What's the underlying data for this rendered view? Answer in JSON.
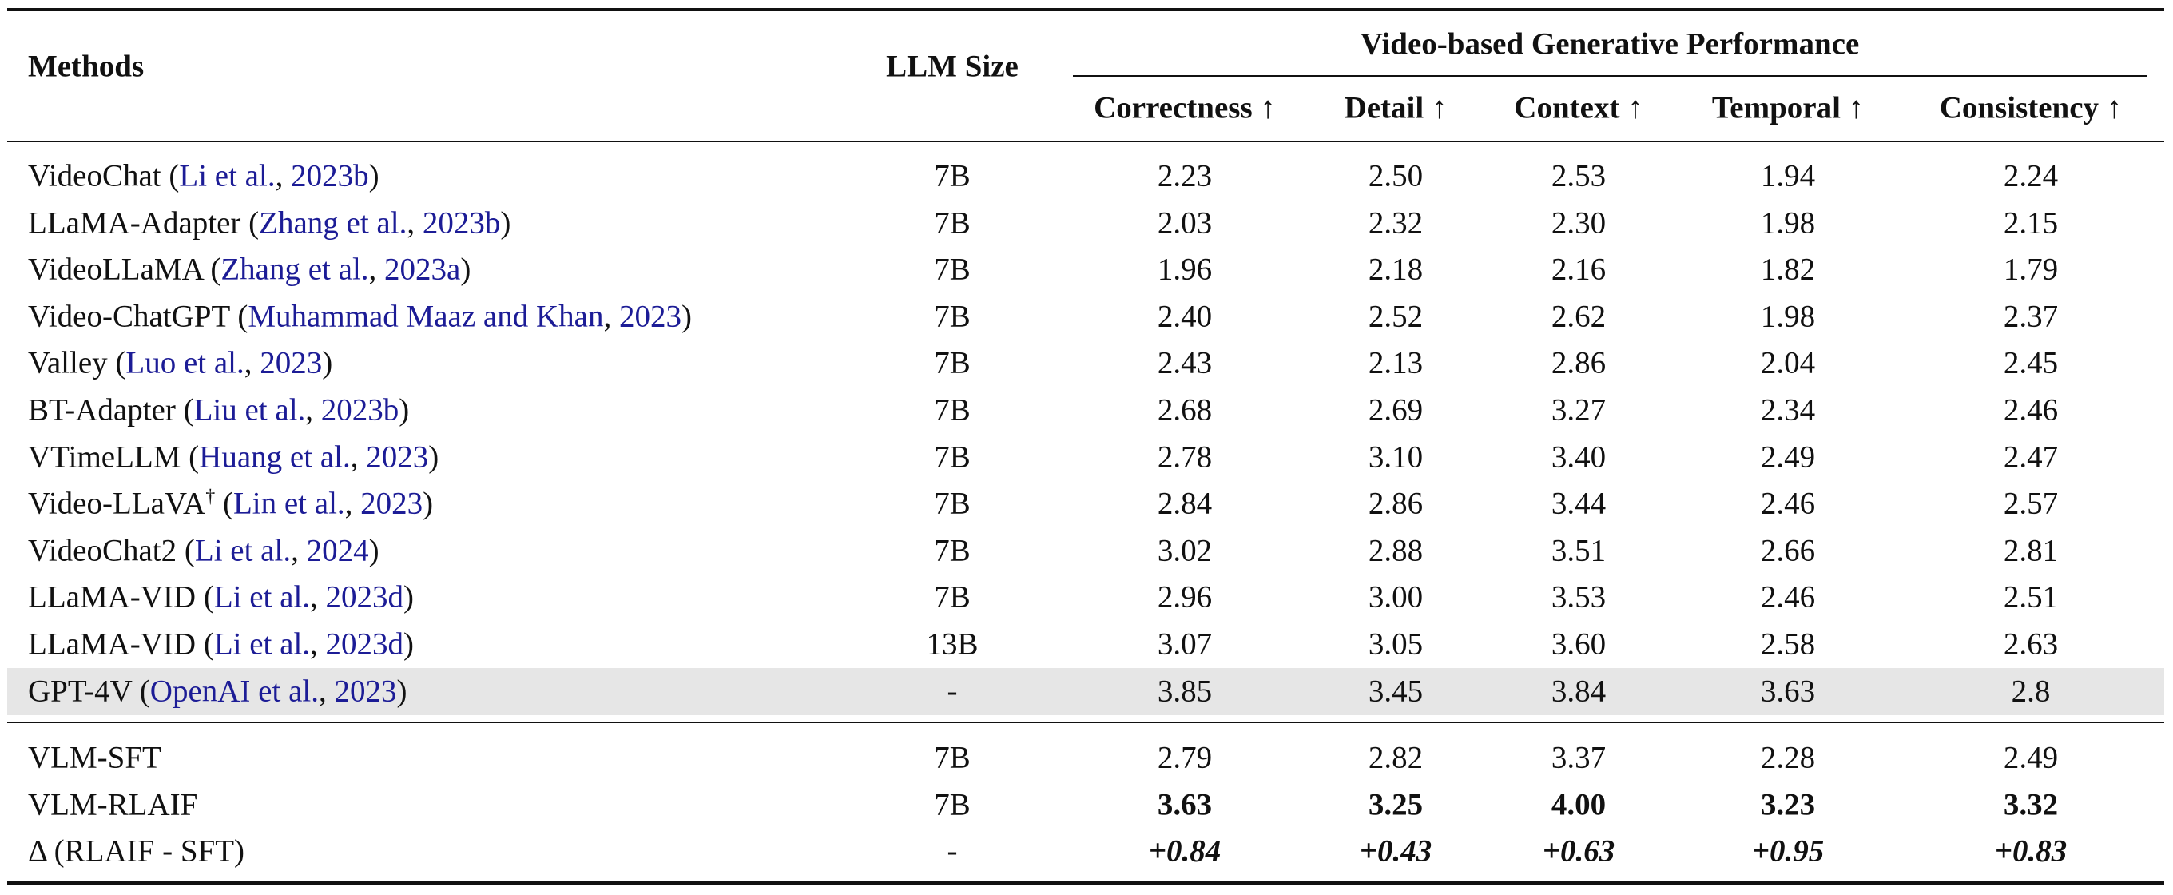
{
  "table": {
    "header": {
      "methods": "Methods",
      "llm_size": "LLM Size",
      "group": "Video-based Generative Performance",
      "metrics": [
        "Correctness ↑",
        "Detail ↑",
        "Context ↑",
        "Temporal ↑",
        "Consistency ↑"
      ]
    },
    "baseline_rows": [
      {
        "method": [
          {
            "text": "VideoChat (",
            "link": false
          },
          {
            "text": "Li et al.",
            "link": true
          },
          {
            "text": ", ",
            "link": false
          },
          {
            "text": "2023b",
            "link": true
          },
          {
            "text": ")",
            "link": false
          }
        ],
        "llm_size": "7B",
        "scores": [
          "2.23",
          "2.50",
          "2.53",
          "1.94",
          "2.24"
        ]
      },
      {
        "method": [
          {
            "text": "LLaMA-Adapter (",
            "link": false
          },
          {
            "text": "Zhang et al.",
            "link": true
          },
          {
            "text": ", ",
            "link": false
          },
          {
            "text": "2023b",
            "link": true
          },
          {
            "text": ")",
            "link": false
          }
        ],
        "llm_size": "7B",
        "scores": [
          "2.03",
          "2.32",
          "2.30",
          "1.98",
          "2.15"
        ]
      },
      {
        "method": [
          {
            "text": "VideoLLaMA (",
            "link": false
          },
          {
            "text": "Zhang et al.",
            "link": true
          },
          {
            "text": ", ",
            "link": false
          },
          {
            "text": "2023a",
            "link": true
          },
          {
            "text": ")",
            "link": false
          }
        ],
        "llm_size": "7B",
        "scores": [
          "1.96",
          "2.18",
          "2.16",
          "1.82",
          "1.79"
        ]
      },
      {
        "method": [
          {
            "text": "Video-ChatGPT (",
            "link": false
          },
          {
            "text": "Muhammad Maaz and Khan",
            "link": true
          },
          {
            "text": ", ",
            "link": false
          },
          {
            "text": "2023",
            "link": true
          },
          {
            "text": ")",
            "link": false
          }
        ],
        "llm_size": "7B",
        "scores": [
          "2.40",
          "2.52",
          "2.62",
          "1.98",
          "2.37"
        ]
      },
      {
        "method": [
          {
            "text": "Valley (",
            "link": false
          },
          {
            "text": "Luo et al.",
            "link": true
          },
          {
            "text": ", ",
            "link": false
          },
          {
            "text": "2023",
            "link": true
          },
          {
            "text": ")",
            "link": false
          }
        ],
        "llm_size": "7B",
        "scores": [
          "2.43",
          "2.13",
          "2.86",
          "2.04",
          "2.45"
        ]
      },
      {
        "method": [
          {
            "text": "BT-Adapter (",
            "link": false
          },
          {
            "text": "Liu et al.",
            "link": true
          },
          {
            "text": ", ",
            "link": false
          },
          {
            "text": "2023b",
            "link": true
          },
          {
            "text": ")",
            "link": false
          }
        ],
        "llm_size": "7B",
        "scores": [
          "2.68",
          "2.69",
          "3.27",
          "2.34",
          "2.46"
        ]
      },
      {
        "method": [
          {
            "text": "VTimeLLM (",
            "link": false
          },
          {
            "text": "Huang et al.",
            "link": true
          },
          {
            "text": ", ",
            "link": false
          },
          {
            "text": "2023",
            "link": true
          },
          {
            "text": ")",
            "link": false
          }
        ],
        "llm_size": "7B",
        "scores": [
          "2.78",
          "3.10",
          "3.40",
          "2.49",
          "2.47"
        ]
      },
      {
        "method": [
          {
            "text": "Video-LLaVA",
            "link": false
          },
          {
            "text": "†",
            "link": false,
            "sup": true
          },
          {
            "text": " (",
            "link": false
          },
          {
            "text": "Lin et al.",
            "link": true
          },
          {
            "text": ", ",
            "link": false
          },
          {
            "text": "2023",
            "link": true
          },
          {
            "text": ")",
            "link": false
          }
        ],
        "llm_size": "7B",
        "scores": [
          "2.84",
          "2.86",
          "3.44",
          "2.46",
          "2.57"
        ]
      },
      {
        "method": [
          {
            "text": "VideoChat2 (",
            "link": false
          },
          {
            "text": "Li et al.",
            "link": true
          },
          {
            "text": ", ",
            "link": false
          },
          {
            "text": "2024",
            "link": true
          },
          {
            "text": ")",
            "link": false
          }
        ],
        "llm_size": "7B",
        "scores": [
          "3.02",
          "2.88",
          "3.51",
          "2.66",
          "2.81"
        ]
      },
      {
        "method": [
          {
            "text": "LLaMA-VID (",
            "link": false
          },
          {
            "text": "Li et al.",
            "link": true
          },
          {
            "text": ", ",
            "link": false
          },
          {
            "text": "2023d",
            "link": true
          },
          {
            "text": ")",
            "link": false
          }
        ],
        "llm_size": "7B",
        "scores": [
          "2.96",
          "3.00",
          "3.53",
          "2.46",
          "2.51"
        ]
      },
      {
        "method": [
          {
            "text": "LLaMA-VID (",
            "link": false
          },
          {
            "text": "Li et al.",
            "link": true
          },
          {
            "text": ", ",
            "link": false
          },
          {
            "text": "2023d",
            "link": true
          },
          {
            "text": ")",
            "link": false
          }
        ],
        "llm_size": "13B",
        "scores": [
          "3.07",
          "3.05",
          "3.60",
          "2.58",
          "2.63"
        ]
      },
      {
        "method": [
          {
            "text": "GPT-4V (",
            "link": false
          },
          {
            "text": "OpenAI et al.",
            "link": true
          },
          {
            "text": ", ",
            "link": false
          },
          {
            "text": "2023",
            "link": true
          },
          {
            "text": ")",
            "link": false
          }
        ],
        "llm_size": "-",
        "scores": [
          "3.85",
          "3.45",
          "3.84",
          "3.63",
          "2.8"
        ],
        "shaded": true
      }
    ],
    "ours_rows": [
      {
        "method": [
          {
            "text": "VLM-SFT",
            "link": false
          }
        ],
        "llm_size": "7B",
        "scores": [
          "2.79",
          "2.82",
          "3.37",
          "2.28",
          "2.49"
        ]
      },
      {
        "method": [
          {
            "text": "VLM-RLAIF",
            "link": false
          }
        ],
        "llm_size": "7B",
        "scores": [
          "3.63",
          "3.25",
          "4.00",
          "3.23",
          "3.32"
        ],
        "style": "bold"
      },
      {
        "method": [
          {
            "text": "Δ (RLAIF - SFT)",
            "link": false
          }
        ],
        "llm_size": "-",
        "scores": [
          "+0.84",
          "+0.43",
          "+0.63",
          "+0.95",
          "+0.83"
        ],
        "style": "bold-italic"
      }
    ]
  }
}
